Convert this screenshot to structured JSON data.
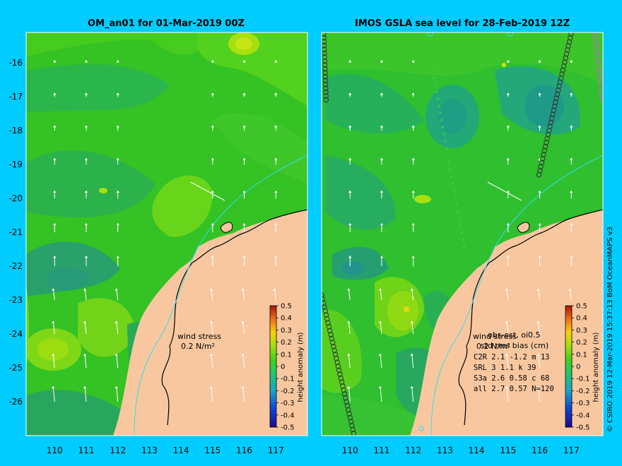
{
  "left_panel": {
    "title": "OM_an01 for 01-Mar-2019 00Z",
    "wind_label": "wind stress",
    "scale_label": "0.2 N/m²"
  },
  "right_panel": {
    "title": "IMOS GSLA sea level  for 28-Feb-2019 12Z",
    "wind_label": "wind stress",
    "scale_label": "0.2 N/m²",
    "stats_header": "obs-est, oi0.5",
    "stats_subheader": "std rms bias (cm)",
    "stats_rows": [
      "C2R   2.1 -1.2 m 13",
      "SRL    3 1.1 k 39",
      "S3a   2.6 0.58 c 68",
      "all   2.7 0.57 N=120"
    ]
  },
  "axes": {
    "x_ticks": [
      "110",
      "111",
      "112",
      "113",
      "114",
      "115",
      "116",
      "117"
    ],
    "y_ticks": [
      "-16",
      "-17",
      "-18",
      "-19",
      "-20",
      "-21",
      "-22",
      "-23",
      "-24",
      "-25",
      "-26"
    ],
    "lon_range": [
      109.1,
      118.0
    ],
    "lat_range": [
      -27.0,
      -15.1
    ]
  },
  "colorbar": {
    "label": "height anomaly (m)",
    "ticks": [
      "0.5",
      "0.4",
      "0.3",
      "0.2",
      "0.1",
      "0",
      "-0.1",
      "-0.2",
      "-0.3",
      "-0.4",
      "-0.5"
    ],
    "range": [
      -0.5,
      0.5
    ]
  },
  "credit": "© CSIRO 2019   12-Mar-2019 15:37:13 BoM OceanMAPS v3",
  "colors": {
    "background": "#00ccff",
    "land": "#f9c79f",
    "sea_base": "#34c224",
    "coast_contour": "#33ddee",
    "track_ring": "#333333"
  }
}
